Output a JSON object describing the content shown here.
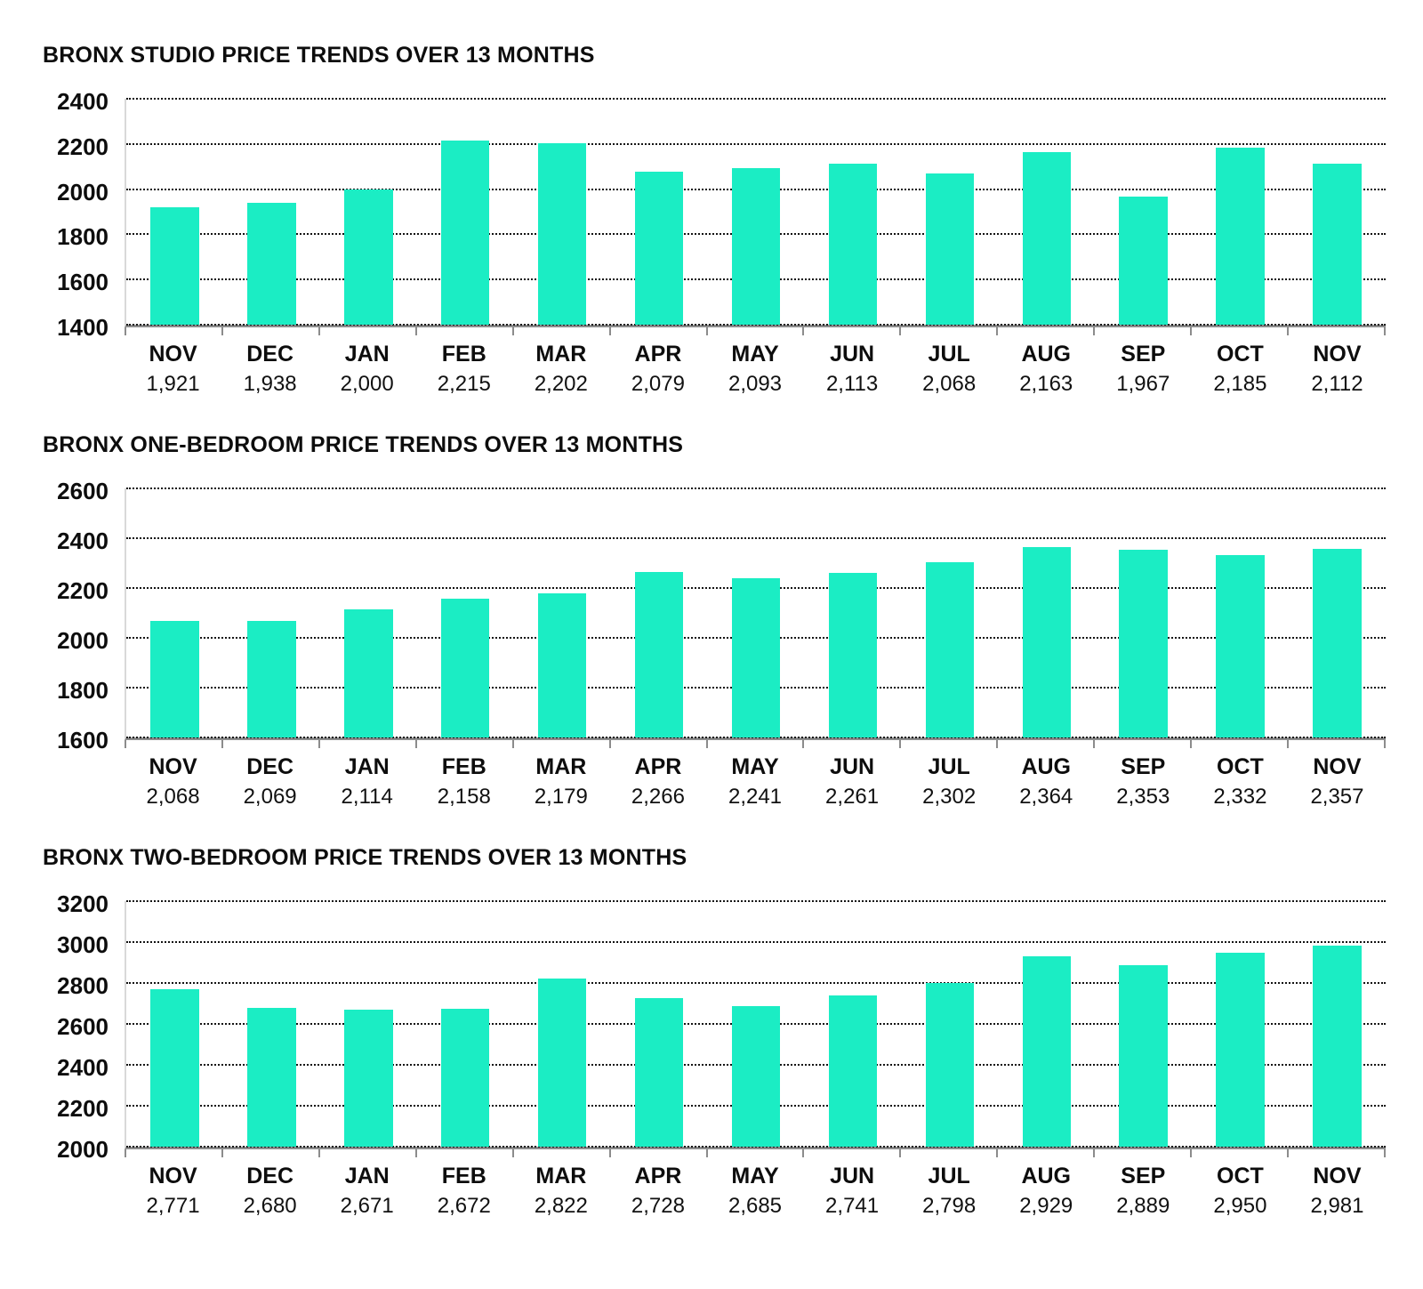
{
  "page": {
    "background": "#ffffff"
  },
  "colors": {
    "bar": "#1BEDC4",
    "baseline": "#8c8c8c",
    "y_axis_line": "#d9d9d9",
    "gridline": "#141414",
    "text": "#000000"
  },
  "chart_data": [
    {
      "type": "bar",
      "title": "BRONX STUDIO PRICE TRENDS OVER 13 MONTHS",
      "categories": [
        "NOV",
        "DEC",
        "JAN",
        "FEB",
        "MAR",
        "APR",
        "MAY",
        "JUN",
        "JUL",
        "AUG",
        "SEP",
        "OCT",
        "NOV"
      ],
      "values": [
        1921,
        1938,
        2000,
        2215,
        2202,
        2079,
        2093,
        2113,
        2068,
        2163,
        1967,
        2185,
        2112
      ],
      "value_labels": [
        "1,921",
        "1,938",
        "2,000",
        "2,215",
        "2,202",
        "2,079",
        "2,093",
        "2,113",
        "2,068",
        "2,163",
        "1,967",
        "2,185",
        "2,112"
      ],
      "y_ticks": [
        2400,
        2200,
        2000,
        1800,
        1600,
        1400
      ],
      "ylim": [
        1400,
        2400
      ],
      "xlabel": "",
      "ylabel": "",
      "grid": "horizontal dotted",
      "legend": "none",
      "bar_color": "#1BEDC4"
    },
    {
      "type": "bar",
      "title": "BRONX ONE-BEDROOM PRICE TRENDS OVER 13 MONTHS",
      "categories": [
        "NOV",
        "DEC",
        "JAN",
        "FEB",
        "MAR",
        "APR",
        "MAY",
        "JUN",
        "JUL",
        "AUG",
        "SEP",
        "OCT",
        "NOV"
      ],
      "values": [
        2068,
        2069,
        2114,
        2158,
        2179,
        2266,
        2241,
        2261,
        2302,
        2364,
        2353,
        2332,
        2357
      ],
      "value_labels": [
        "2,068",
        "2,069",
        "2,114",
        "2,158",
        "2,179",
        "2,266",
        "2,241",
        "2,261",
        "2,302",
        "2,364",
        "2,353",
        "2,332",
        "2,357"
      ],
      "y_ticks": [
        2600,
        2400,
        2200,
        2000,
        1800,
        1600
      ],
      "ylim": [
        1600,
        2600
      ],
      "xlabel": "",
      "ylabel": "",
      "grid": "horizontal dotted",
      "legend": "none",
      "bar_color": "#1BEDC4"
    },
    {
      "type": "bar",
      "title": "BRONX TWO-BEDROOM PRICE TRENDS OVER 13 MONTHS",
      "categories": [
        "NOV",
        "DEC",
        "JAN",
        "FEB",
        "MAR",
        "APR",
        "MAY",
        "JUN",
        "JUL",
        "AUG",
        "SEP",
        "OCT",
        "NOV"
      ],
      "values": [
        2771,
        2680,
        2671,
        2672,
        2822,
        2728,
        2685,
        2741,
        2798,
        2929,
        2889,
        2950,
        2981
      ],
      "value_labels": [
        "2,771",
        "2,680",
        "2,671",
        "2,672",
        "2,822",
        "2,728",
        "2,685",
        "2,741",
        "2,798",
        "2,929",
        "2,889",
        "2,950",
        "2,981"
      ],
      "y_ticks": [
        3200,
        3000,
        2800,
        2600,
        2400,
        2200,
        2000
      ],
      "ylim": [
        2000,
        3200
      ],
      "xlabel": "",
      "ylabel": "",
      "grid": "horizontal dotted",
      "legend": "none",
      "bar_color": "#1BEDC4"
    }
  ]
}
